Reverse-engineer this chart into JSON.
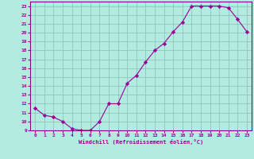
{
  "x": [
    0,
    1,
    2,
    3,
    4,
    5,
    6,
    7,
    8,
    9,
    10,
    11,
    12,
    13,
    14,
    15,
    16,
    17,
    18,
    19,
    20,
    21,
    22,
    23
  ],
  "y": [
    11.5,
    10.7,
    10.5,
    10.0,
    9.2,
    9.0,
    9.0,
    10.0,
    12.0,
    12.0,
    14.3,
    15.2,
    16.7,
    18.0,
    18.8,
    20.1,
    21.2,
    23.0,
    23.0,
    23.0,
    23.0,
    22.8,
    21.5,
    20.1
  ],
  "line_color": "#990099",
  "marker": "D",
  "marker_size": 2.2,
  "bg_color": "#b2ece0",
  "grid_color": "#8fbbbb",
  "xlabel": "Windchill (Refroidissement éolien,°C)",
  "xlabel_color": "#990099",
  "tick_color": "#990099",
  "spine_color": "#880088",
  "xlim": [
    -0.5,
    23.5
  ],
  "ylim": [
    9,
    23.5
  ],
  "yticks": [
    9,
    10,
    11,
    12,
    13,
    14,
    15,
    16,
    17,
    18,
    19,
    20,
    21,
    22,
    23
  ],
  "xticks": [
    0,
    1,
    2,
    3,
    4,
    5,
    6,
    7,
    8,
    9,
    10,
    11,
    12,
    13,
    14,
    15,
    16,
    17,
    18,
    19,
    20,
    21,
    22,
    23
  ]
}
